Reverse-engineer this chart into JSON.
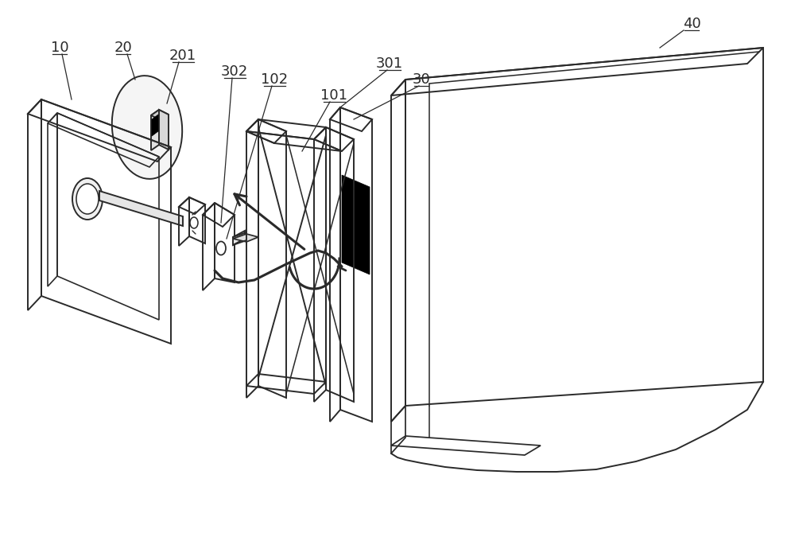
{
  "background_color": "#ffffff",
  "line_color": "#2a2a2a",
  "figsize": [
    10.0,
    6.8
  ],
  "dpi": 100
}
